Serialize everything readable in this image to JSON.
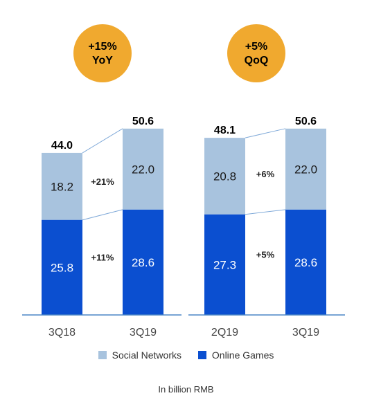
{
  "colors": {
    "social": "#a8c3de",
    "games": "#0b4fd0",
    "badge": "#f0a92f",
    "baseline": "#4a86c5",
    "connector": "#7fa9d8"
  },
  "chart_data": [
    {
      "type": "bar",
      "stacked": true,
      "badge": [
        "+15%",
        "YoY"
      ],
      "categories": [
        "3Q18",
        "3Q19"
      ],
      "series": [
        {
          "name": "Online Games",
          "values": [
            25.8,
            28.6
          ]
        },
        {
          "name": "Social Networks",
          "values": [
            18.2,
            22.0
          ]
        }
      ],
      "totals": [
        44.0,
        50.6
      ],
      "growth_labels": {
        "Social Networks": "+21%",
        "Online Games": "+11%"
      }
    },
    {
      "type": "bar",
      "stacked": true,
      "badge": [
        "+5%",
        "QoQ"
      ],
      "categories": [
        "2Q19",
        "3Q19"
      ],
      "series": [
        {
          "name": "Online Games",
          "values": [
            27.3,
            28.6
          ]
        },
        {
          "name": "Social Networks",
          "values": [
            20.8,
            22.0
          ]
        }
      ],
      "totals": [
        48.1,
        50.6
      ],
      "growth_labels": {
        "Social Networks": "+6%",
        "Online Games": "+5%"
      }
    }
  ],
  "legend": {
    "social_label": "Social Networks",
    "games_label": "Online Games"
  },
  "note": "In billion RMB"
}
